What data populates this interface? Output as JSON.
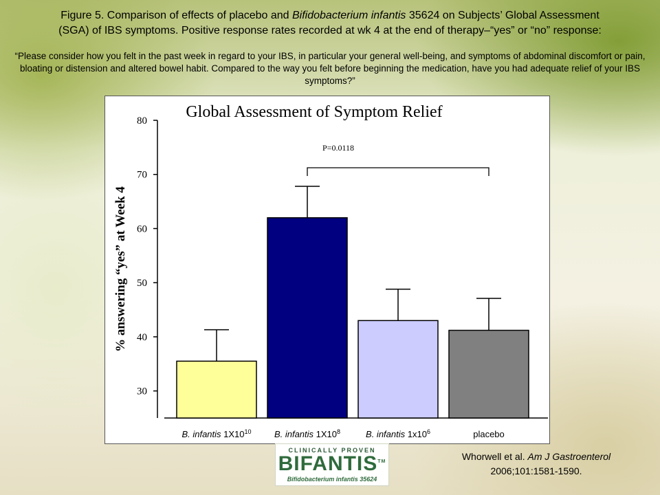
{
  "caption": {
    "line1_prefix": "Figure 5. Comparison of effects of placebo and ",
    "line1_species": "Bifidobacterium infantis",
    "line1_suffix": " 35624 on Subjects’ Global Assessment",
    "line2": "(SGA) of IBS symptoms. Positive response rates recorded at wk 4 at the end of therapy–“yes” or “no” response:"
  },
  "question": "“Please consider how you felt in the past week in regard to your IBS, in particular your general well-being, and symptoms of abdominal discomfort or pain, bloating or distension and altered bowel habit. Compared to the way you felt before beginning the medication, have you had adequate relief of your IBS symptoms?”",
  "logo": {
    "tagline": "CLINICALLY PROVEN",
    "brand": "BIFANTIS",
    "tm": "TM",
    "subtitle": "Bifidobacterium infantis 35624"
  },
  "citation": {
    "authors": "Whorwell et al. ",
    "journal": "Am J Gastroenterol",
    "ref": "2006;101:1581-1590."
  },
  "colors": {
    "bar1": "#ffff99",
    "bar2": "#000080",
    "bar3": "#ccccff",
    "bar4": "#808080"
  },
  "chart_data": {
    "type": "bar",
    "title": "Global Assessment of Symptom Relief",
    "ylabel": "% answering “yes” at Week 4",
    "xlabel": "",
    "ylim": [
      25,
      80
    ],
    "yticks": [
      30,
      40,
      50,
      60,
      70,
      80
    ],
    "categories": [
      {
        "species": "B. infantis",
        "base": " 1X10",
        "exp": "10"
      },
      {
        "species": "B. infantis",
        "base": " 1X10",
        "exp": "8"
      },
      {
        "species": "B. infantis",
        "base": " 1x10",
        "exp": "6"
      },
      {
        "species": "",
        "base": "placebo",
        "exp": ""
      }
    ],
    "values": [
      35.5,
      62,
      43,
      41.2
    ],
    "errors": [
      5.8,
      5.8,
      5.8,
      5.9
    ],
    "significance": {
      "label": "P=0.0118",
      "from": 1,
      "to": 3
    }
  }
}
